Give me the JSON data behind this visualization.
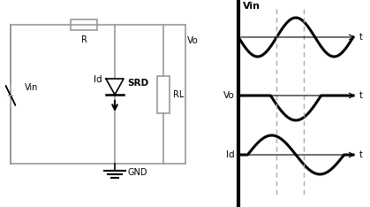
{
  "bg_color": "#ffffff",
  "circuit": {
    "line_color": "#999999",
    "line_width": 1.2
  },
  "labels": {
    "Vin_text": "Vin",
    "R_text": "R",
    "SRD_text": "SRD",
    "RL_text": "RL",
    "Vo_text": "Vo",
    "Id_text": "Id",
    "GND_text": "GND"
  },
  "waveform": {
    "Vin_label": "Vin",
    "Vo_label": "Vo",
    "Id_label": "Id",
    "t_label": "t",
    "dashed_color": "#aaaaaa"
  }
}
